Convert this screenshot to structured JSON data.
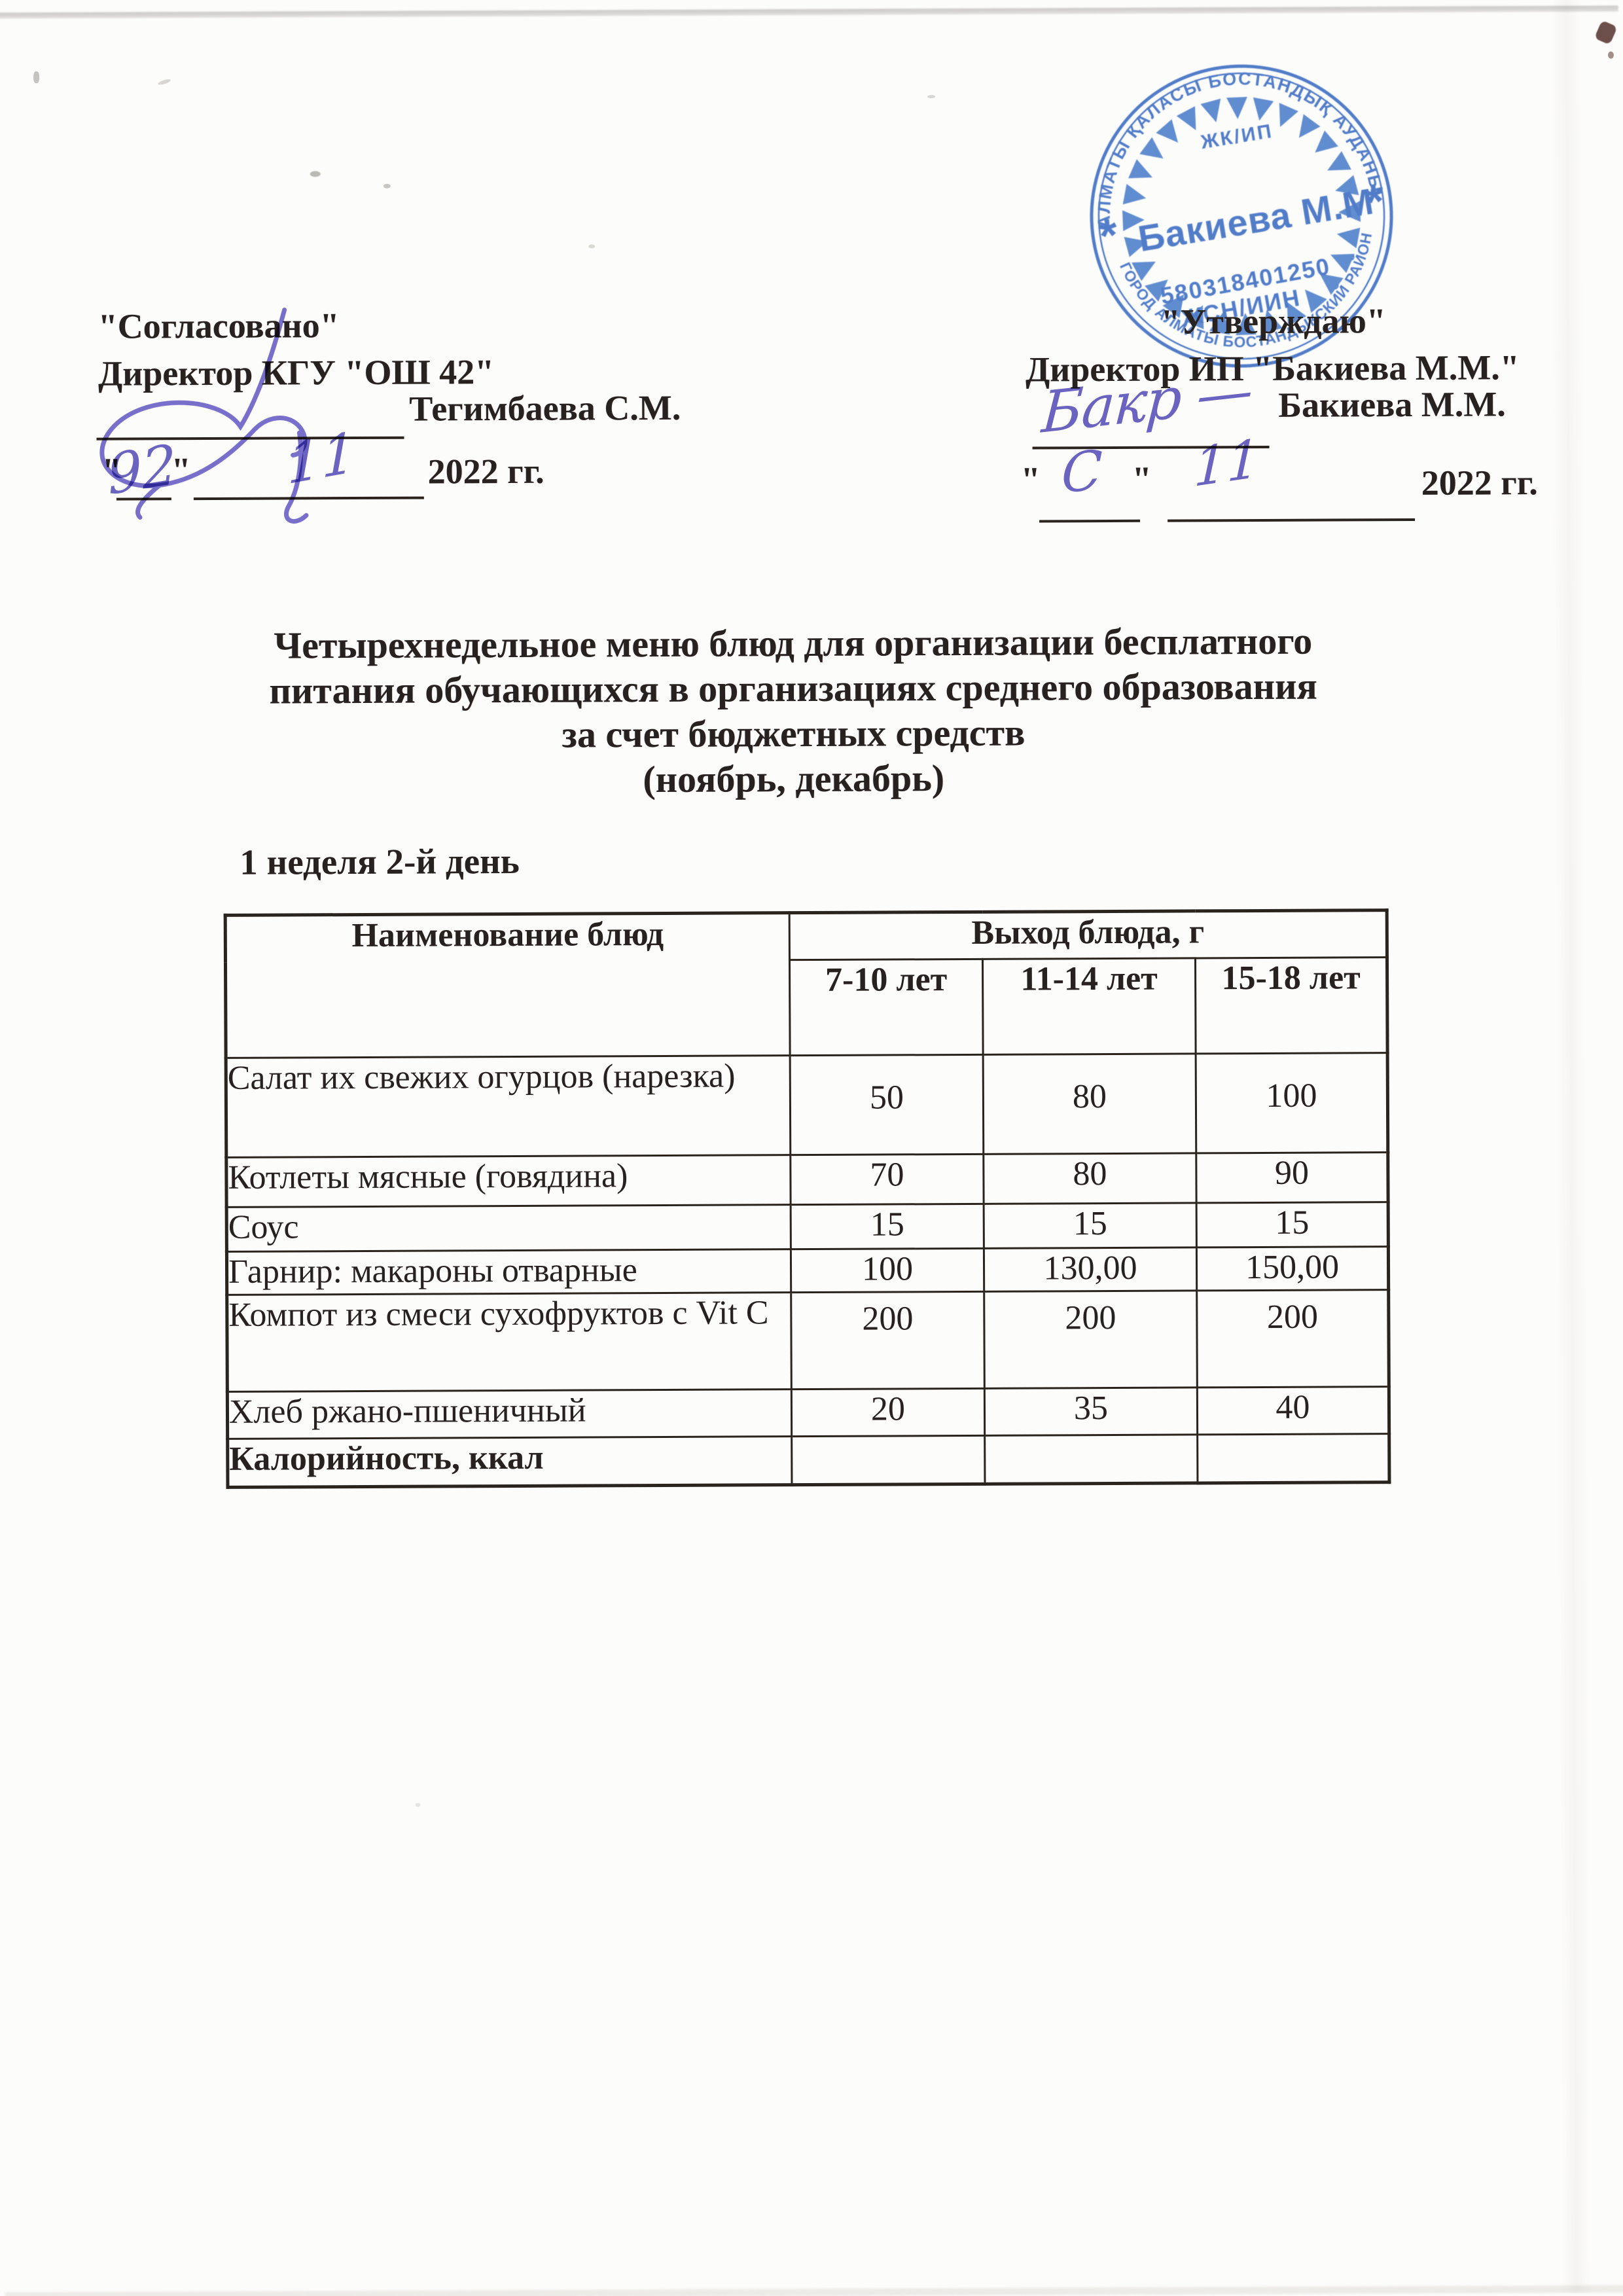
{
  "approvals": {
    "left": {
      "line1": "\"Согласовано\"",
      "line2": "Директор КГУ \"ОШ 42\"",
      "signatory": "Тегимбаева С.М.",
      "quote_open": "\"",
      "quote_close": "\"",
      "year": "2022 гг.",
      "handwritten_day": "92",
      "handwritten_month": "11"
    },
    "right": {
      "line1": "\"Утверждаю\"",
      "line2": "Директор ИП \"Бакиева М.М.\"",
      "signatory": "Бакиева М.М.",
      "quote_open": "\"",
      "quote_close": "\"",
      "year": "2022 гг.",
      "handwritten_signature": "Бакр —",
      "handwritten_day": "С",
      "handwritten_month": "11"
    }
  },
  "stamp": {
    "ring_top": "АЛМАТЫ ҚАЛАСЫ БОСТАНДЫҚ АУДАНЫ",
    "ring_bottom": "ГОРОД АЛМАТЫ БОСТАНДЫКСКИЙ РАЙОН",
    "org_type": "ЖК/ИП",
    "name": "Бакиева М.М",
    "id_number": "580318401250",
    "id_label": "ЖСН/ИИН",
    "star": "*",
    "ink_color": "#3e6ec2"
  },
  "handwriting_ink_color": "#5d55bb",
  "title_lines": [
    "Четырехнедельное меню блюд для организации бесплатного",
    "питания обучающихся в организациях среднего образования",
    "за счет бюджетных средств",
    "(ноябрь, декабрь)"
  ],
  "subtitle": "1 неделя 2-й день",
  "table": {
    "col_header_name": "Наименование блюд",
    "col_group_header": "Выход блюда, г",
    "age_columns": [
      "7-10 лет",
      "11-14 лет",
      "15-18 лет"
    ],
    "rows": [
      {
        "name": "Салат их свежих огурцов (нарезка)",
        "values": [
          "50",
          "80",
          "100"
        ]
      },
      {
        "name": "Котлеты мясные (говядина)",
        "values": [
          "70",
          "80",
          "90"
        ]
      },
      {
        "name": "Соус",
        "values": [
          "15",
          "15",
          "15"
        ]
      },
      {
        "name": "Гарнир: макароны отварные",
        "values": [
          "100",
          "130,00",
          "150,00"
        ]
      },
      {
        "name": "Компот из смеси сухофруктов с Vit C",
        "values": [
          "200",
          "200",
          "200"
        ]
      },
      {
        "name": "Хлеб ржано-пшеничный",
        "values": [
          "20",
          "35",
          "40"
        ]
      },
      {
        "name": "Калорийность, ккал",
        "values": [
          "",
          "",
          ""
        ]
      }
    ]
  }
}
